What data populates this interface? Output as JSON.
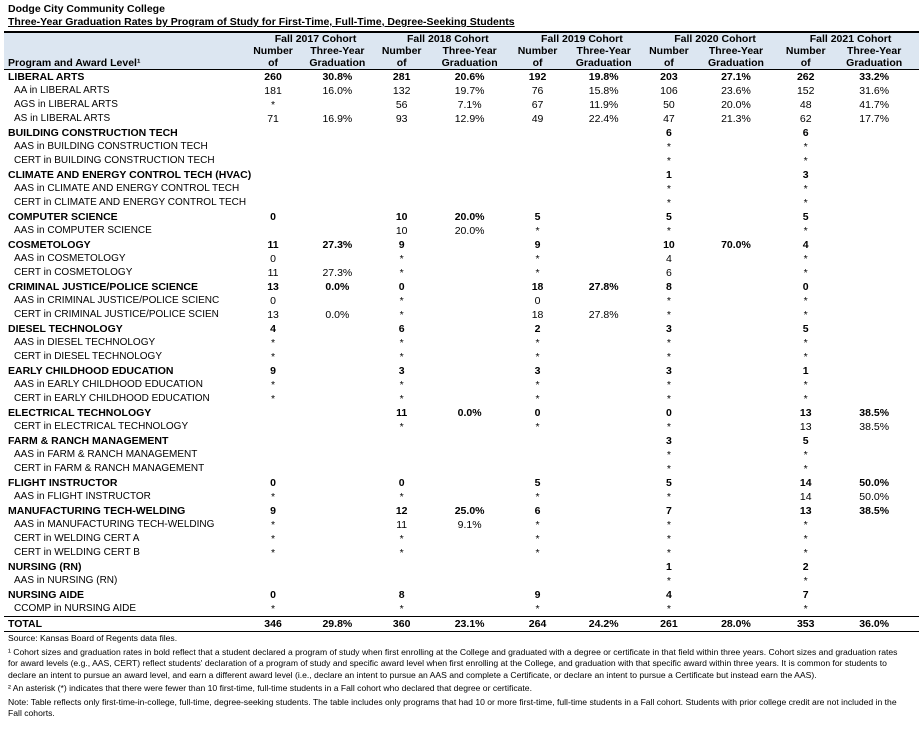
{
  "header": {
    "title": "Dodge City Community College",
    "subtitle": "Three-Year Graduation Rates by Program of Study for First-Time, Full-Time, Degree-Seeking Students"
  },
  "table": {
    "program_header": "Program and Award Level¹",
    "cohorts": [
      "Fall 2017 Cohort",
      "Fall 2018 Cohort",
      "Fall 2019 Cohort",
      "Fall 2020 Cohort",
      "Fall 2021 Cohort"
    ],
    "column_labels": {
      "number": [
        "Number",
        "of"
      ],
      "rate": [
        "Three-Year",
        "Graduation"
      ]
    },
    "rows": [
      {
        "label": "LIBERAL ARTS",
        "bold": true,
        "cells": [
          "260",
          "30.8%",
          "281",
          "20.6%",
          "192",
          "19.8%",
          "203",
          "27.1%",
          "262",
          "33.2%"
        ]
      },
      {
        "label": "AA in LIBERAL ARTS",
        "bold": false,
        "cells": [
          "181",
          "16.0%",
          "132",
          "19.7%",
          "76",
          "15.8%",
          "106",
          "23.6%",
          "152",
          "31.6%"
        ]
      },
      {
        "label": "AGS in LIBERAL ARTS",
        "bold": false,
        "cells": [
          "*",
          null,
          "56",
          "7.1%",
          "67",
          "11.9%",
          "50",
          "20.0%",
          "48",
          "41.7%"
        ]
      },
      {
        "label": "AS in LIBERAL ARTS",
        "bold": false,
        "cells": [
          "71",
          "16.9%",
          "93",
          "12.9%",
          "49",
          "22.4%",
          "47",
          "21.3%",
          "62",
          "17.7%"
        ]
      },
      {
        "label": "BUILDING CONSTRUCTION TECH",
        "bold": true,
        "cells": [
          null,
          null,
          null,
          null,
          null,
          null,
          "6",
          null,
          "6",
          null
        ]
      },
      {
        "label": "AAS in BUILDING CONSTRUCTION TECH",
        "bold": false,
        "cells": [
          null,
          null,
          null,
          null,
          null,
          null,
          "*",
          null,
          "*",
          null
        ]
      },
      {
        "label": "CERT in BUILDING CONSTRUCTION TECH",
        "bold": false,
        "cells": [
          null,
          null,
          null,
          null,
          null,
          null,
          "*",
          null,
          "*",
          null
        ]
      },
      {
        "label": "CLIMATE AND ENERGY CONTROL TECH (HVAC)",
        "bold": true,
        "cells": [
          null,
          null,
          null,
          null,
          null,
          null,
          "1",
          null,
          "3",
          null
        ]
      },
      {
        "label": "AAS in CLIMATE AND ENERGY CONTROL TECH",
        "bold": false,
        "cells": [
          null,
          null,
          null,
          null,
          null,
          null,
          "*",
          null,
          "*",
          null
        ]
      },
      {
        "label": "CERT in CLIMATE AND ENERGY CONTROL TECH",
        "bold": false,
        "cells": [
          null,
          null,
          null,
          null,
          null,
          null,
          "*",
          null,
          "*",
          null
        ]
      },
      {
        "label": "COMPUTER SCIENCE",
        "bold": true,
        "cells": [
          "0",
          null,
          "10",
          "20.0%",
          "5",
          null,
          "5",
          null,
          "5",
          null
        ]
      },
      {
        "label": "AAS in COMPUTER SCIENCE",
        "bold": false,
        "cells": [
          null,
          null,
          "10",
          "20.0%",
          "*",
          null,
          "*",
          null,
          "*",
          null
        ]
      },
      {
        "label": "COSMETOLOGY",
        "bold": true,
        "cells": [
          "11",
          "27.3%",
          "9",
          null,
          "9",
          null,
          "10",
          "70.0%",
          "4",
          null
        ]
      },
      {
        "label": "AAS in COSMETOLOGY",
        "bold": false,
        "cells": [
          "0",
          null,
          "*",
          null,
          "*",
          null,
          "4",
          null,
          "*",
          null
        ]
      },
      {
        "label": "CERT in COSMETOLOGY",
        "bold": false,
        "cells": [
          "11",
          "27.3%",
          "*",
          null,
          "*",
          null,
          "6",
          null,
          "*",
          null
        ]
      },
      {
        "label": "CRIMINAL JUSTICE/POLICE SCIENCE",
        "bold": true,
        "cells": [
          "13",
          "0.0%",
          "0",
          null,
          "18",
          "27.8%",
          "8",
          null,
          "0",
          null
        ]
      },
      {
        "label": "AAS in CRIMINAL JUSTICE/POLICE SCIENC",
        "bold": false,
        "cells": [
          "0",
          null,
          "*",
          null,
          "0",
          null,
          "*",
          null,
          "*",
          null
        ]
      },
      {
        "label": "CERT in CRIMINAL JUSTICE/POLICE SCIEN",
        "bold": false,
        "cells": [
          "13",
          "0.0%",
          "*",
          null,
          "18",
          "27.8%",
          "*",
          null,
          "*",
          null
        ]
      },
      {
        "label": "DIESEL TECHNOLOGY",
        "bold": true,
        "cells": [
          "4",
          null,
          "6",
          null,
          "2",
          null,
          "3",
          null,
          "5",
          null
        ]
      },
      {
        "label": "AAS in DIESEL TECHNOLOGY",
        "bold": false,
        "cells": [
          "*",
          null,
          "*",
          null,
          "*",
          null,
          "*",
          null,
          "*",
          null
        ]
      },
      {
        "label": "CERT in DIESEL TECHNOLOGY",
        "bold": false,
        "cells": [
          "*",
          null,
          "*",
          null,
          "*",
          null,
          "*",
          null,
          "*",
          null
        ]
      },
      {
        "label": "EARLY CHILDHOOD EDUCATION",
        "bold": true,
        "cells": [
          "9",
          null,
          "3",
          null,
          "3",
          null,
          "3",
          null,
          "1",
          null
        ]
      },
      {
        "label": "AAS in EARLY CHILDHOOD EDUCATION",
        "bold": false,
        "cells": [
          "*",
          null,
          "*",
          null,
          "*",
          null,
          "*",
          null,
          "*",
          null
        ]
      },
      {
        "label": "CERT in EARLY CHILDHOOD EDUCATION",
        "bold": false,
        "cells": [
          "*",
          null,
          "*",
          null,
          "*",
          null,
          "*",
          null,
          "*",
          null
        ]
      },
      {
        "label": "ELECTRICAL TECHNOLOGY",
        "bold": true,
        "cells": [
          null,
          null,
          "11",
          "0.0%",
          "0",
          null,
          "0",
          null,
          "13",
          "38.5%"
        ]
      },
      {
        "label": "CERT in ELECTRICAL TECHNOLOGY",
        "bold": false,
        "cells": [
          null,
          null,
          "*",
          null,
          "*",
          null,
          "*",
          null,
          "13",
          "38.5%"
        ]
      },
      {
        "label": "FARM & RANCH MANAGEMENT",
        "bold": true,
        "cells": [
          null,
          null,
          null,
          null,
          null,
          null,
          "3",
          null,
          "5",
          null
        ]
      },
      {
        "label": "AAS in FARM & RANCH MANAGEMENT",
        "bold": false,
        "cells": [
          null,
          null,
          null,
          null,
          null,
          null,
          "*",
          null,
          "*",
          null
        ]
      },
      {
        "label": "CERT in FARM & RANCH MANAGEMENT",
        "bold": false,
        "cells": [
          null,
          null,
          null,
          null,
          null,
          null,
          "*",
          null,
          "*",
          null
        ]
      },
      {
        "label": "FLIGHT INSTRUCTOR",
        "bold": true,
        "cells": [
          "0",
          null,
          "0",
          null,
          "5",
          null,
          "5",
          null,
          "14",
          "50.0%"
        ]
      },
      {
        "label": "AAS in FLIGHT INSTRUCTOR",
        "bold": false,
        "cells": [
          "*",
          null,
          "*",
          null,
          "*",
          null,
          "*",
          null,
          "14",
          "50.0%"
        ]
      },
      {
        "label": "MANUFACTURING TECH-WELDING",
        "bold": true,
        "cells": [
          "9",
          null,
          "12",
          "25.0%",
          "6",
          null,
          "7",
          null,
          "13",
          "38.5%"
        ]
      },
      {
        "label": "AAS in MANUFACTURING TECH-WELDING",
        "bold": false,
        "cells": [
          "*",
          null,
          "11",
          "9.1%",
          "*",
          null,
          "*",
          null,
          "*",
          null
        ]
      },
      {
        "label": "CERT in WELDING CERT A",
        "bold": false,
        "cells": [
          "*",
          null,
          "*",
          null,
          "*",
          null,
          "*",
          null,
          "*",
          null
        ]
      },
      {
        "label": "CERT in WELDING CERT B",
        "bold": false,
        "cells": [
          "*",
          null,
          "*",
          null,
          "*",
          null,
          "*",
          null,
          "*",
          null
        ]
      },
      {
        "label": "NURSING (RN)",
        "bold": true,
        "cells": [
          null,
          null,
          null,
          null,
          null,
          null,
          "1",
          null,
          "2",
          null
        ]
      },
      {
        "label": "AAS in NURSING (RN)",
        "bold": false,
        "cells": [
          null,
          null,
          null,
          null,
          null,
          null,
          "*",
          null,
          "*",
          null
        ]
      },
      {
        "label": "NURSING AIDE",
        "bold": true,
        "cells": [
          "0",
          null,
          "8",
          null,
          "9",
          null,
          "4",
          null,
          "7",
          null
        ]
      },
      {
        "label": "CCOMP in NURSING AIDE",
        "bold": false,
        "cells": [
          "*",
          null,
          "*",
          null,
          "*",
          null,
          "*",
          null,
          "*",
          null
        ]
      },
      {
        "label": "TOTAL",
        "bold": true,
        "cells": [
          "346",
          "29.8%",
          "360",
          "23.1%",
          "264",
          "24.2%",
          "261",
          "28.0%",
          "353",
          "36.0%"
        ]
      }
    ]
  },
  "notes": [
    "Source: Kansas Board of Regents data files.",
    "¹ Cohort sizes and graduation rates in bold reflect that a student declared a program of study when first enrolling at the College and graduated with a degree or certificate in that field within three years. Cohort sizes and graduation rates for award levels (e.g., AAS, CERT) reflect students' declaration of a program of study and specific award level when first enrolling at the College, and graduation with that specific award within three years. It is common for students to declare an intent to pursue an award level, and earn a different award level (i.e., declare an intent to pursue an AAS and complete a Certificate, or declare an intent to pursue a Certificate but instead earn the AAS).",
    "² An asterisk (*) indicates that there were fewer than 10 first-time, full-time students in a Fall cohort who declared that degree or certificate.",
    "Note: Table reflects only first-time-in-college, full-time, degree-seeking students. The table includes only programs that had 10 or more first-time, full-time students in a Fall cohort. Students with prior college credit are not included in the Fall cohorts."
  ]
}
